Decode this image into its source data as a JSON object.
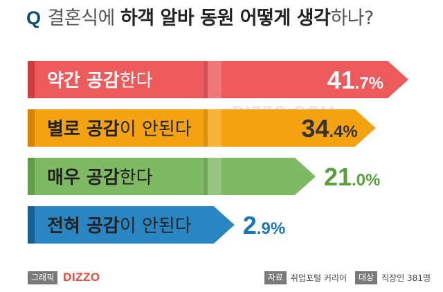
{
  "header": {
    "q": "Q",
    "title_part1": "결혼식에 ",
    "title_part2": "하객 알바 동원 어떻게 생각",
    "title_part3": "하나?"
  },
  "chart_data": {
    "type": "bar",
    "orientation": "horizontal",
    "xlim": [
      0,
      41.7
    ],
    "categories": [
      {
        "bold": "약간 공감",
        "rest": "한다"
      },
      {
        "bold": "별로 공감",
        "rest": "이 안된다"
      },
      {
        "bold": "매우 공감",
        "rest": "한다"
      },
      {
        "bold": "전혀 공감",
        "rest": "이 안된다"
      }
    ],
    "values": [
      41.7,
      34.4,
      21.0,
      2.9
    ],
    "value_labels": [
      {
        "int": "41",
        "dec": ".7%"
      },
      {
        "int": "34",
        "dec": ".4%"
      },
      {
        "int": "21",
        "dec": ".0%"
      },
      {
        "int": "2",
        "dec": ".9%"
      }
    ],
    "colors": [
      {
        "light": "#ec5a5c",
        "dark": "#c93c40",
        "text": "#ffffff",
        "label": "#ffffff"
      },
      {
        "light": "#f4a20f",
        "dark": "#d98200",
        "text": "#222222",
        "label": "#333333"
      },
      {
        "light": "#7fb964",
        "dark": "#5f9d47",
        "text": "#222222",
        "label": "#5aa03f"
      },
      {
        "light": "#2a86c3",
        "dark": "#155f93",
        "text": "#222222",
        "label": "#1a76b8"
      }
    ]
  },
  "watermark": "DIZZO.COM",
  "footer": {
    "graphic_tag": "그래픽",
    "brand": "DIZZO",
    "source_tag": "자료",
    "source_value": "취업포털 커리어",
    "target_tag": "대상",
    "target_value": "직장인 381명"
  }
}
